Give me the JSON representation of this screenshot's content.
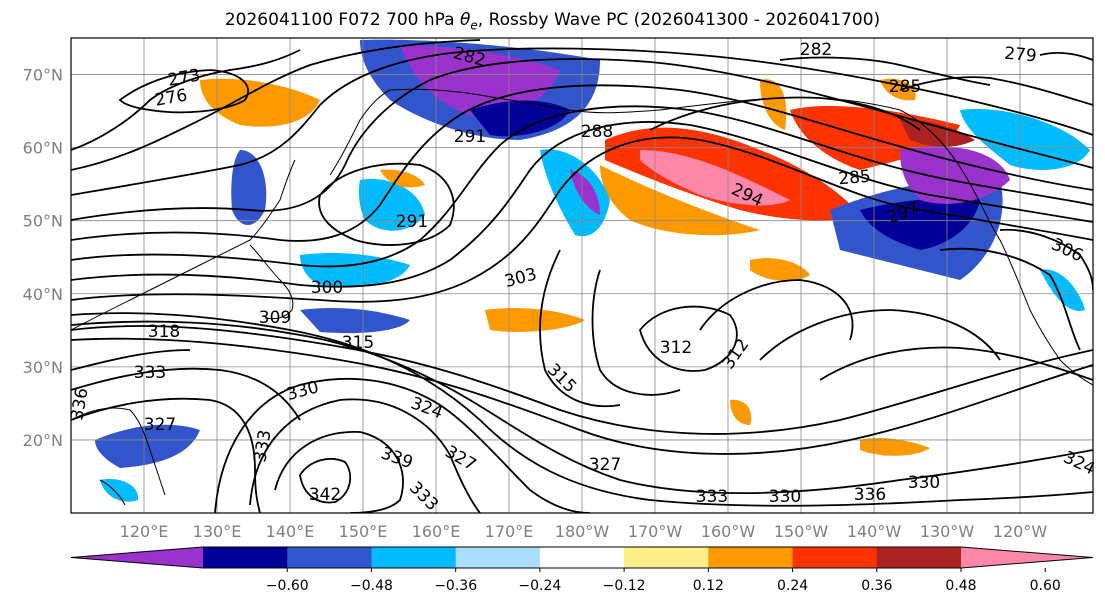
{
  "title_prefix": "2026041100 F072 700 hPa ",
  "title_symbol": "θ",
  "title_subscript": "e",
  "title_suffix": ", Rossby Wave PC (2026041300 - 2026041700)",
  "lat_ticks": [
    "70°N",
    "60°N",
    "50°N",
    "40°N",
    "30°N",
    "20°N"
  ],
  "lon_ticks": [
    "120°E",
    "130°E",
    "140°E",
    "150°E",
    "160°E",
    "170°E",
    "180°W",
    "170°W",
    "160°W",
    "150°W",
    "140°W",
    "130°W",
    "120°W"
  ],
  "contour_labels": [
    "276",
    "273",
    "282",
    "291",
    "288",
    "282",
    "279",
    "285",
    "294",
    "285",
    "297",
    "291",
    "300",
    "303",
    "306",
    "318",
    "309",
    "315",
    "312",
    "312",
    "315",
    "333",
    "330",
    "336",
    "327",
    "333",
    "339",
    "324",
    "327",
    "342",
    "333",
    "327",
    "333",
    "330",
    "336",
    "330",
    "324"
  ],
  "colorbar": {
    "labels": [
      "−0.60",
      "−0.48",
      "−0.36",
      "−0.24",
      "−0.12",
      "0.12",
      "0.24",
      "0.36",
      "0.48",
      "0.60"
    ],
    "colors": [
      "#9933cc",
      "#000099",
      "#3355cc",
      "#00bbff",
      "#aaddff",
      "#ffffff",
      "#ffee88",
      "#ff9900",
      "#ff3300",
      "#aa2222",
      "#ff88aa"
    ]
  },
  "chart_data": {
    "type": "heatmap",
    "title": "2026041100 F072 700 hPa θe, Rossby Wave PC (2026041300 - 2026041700)",
    "lat_range": [
      10,
      75
    ],
    "lon_range": [
      110,
      250
    ],
    "field": "Rossby Wave PC (shaded)",
    "contour_field": "700 hPa θe",
    "color_levels": [
      -0.6,
      -0.48,
      -0.36,
      -0.24,
      -0.12,
      0.12,
      0.24,
      0.36,
      0.48,
      0.6
    ]
  }
}
